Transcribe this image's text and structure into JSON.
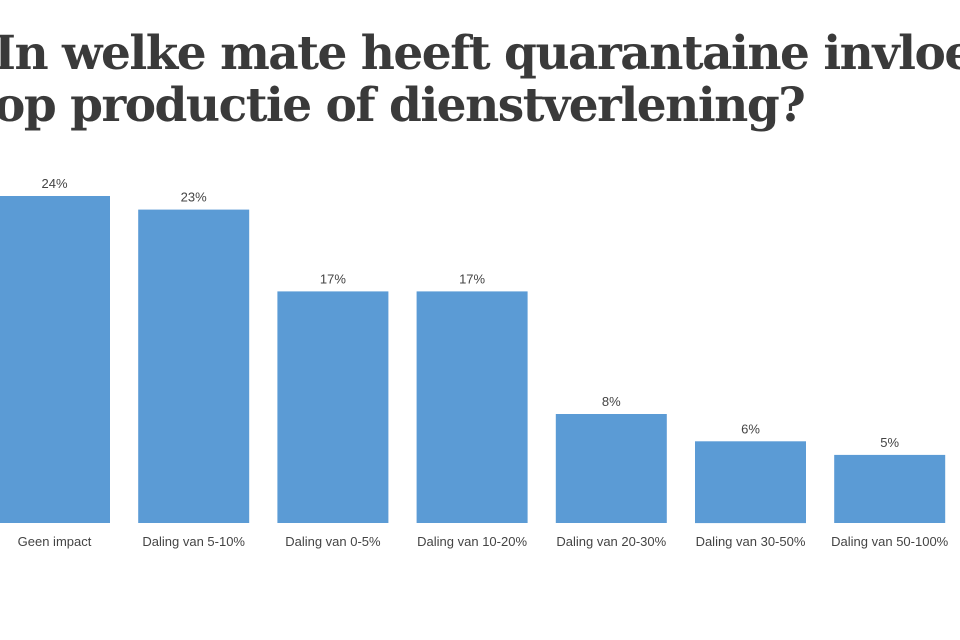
{
  "chart_data": {
    "type": "bar",
    "title_lines": [
      "In welke mate heeft quarantaine invloed",
      "op productie of dienstverlening?"
    ],
    "categories": [
      "Geen impact",
      "Daling van 5-10%",
      "Daling van 0-5%",
      "Daling van 10-20%",
      "Daling van 20-30%",
      "Daling van 30-50%",
      "Daling van 50-100%"
    ],
    "values": [
      24,
      23,
      17,
      17,
      8,
      6,
      5
    ],
    "value_labels": [
      "24%",
      "23%",
      "17%",
      "17%",
      "8%",
      "6%",
      "5%"
    ],
    "unit": "%",
    "ylim": [
      0,
      24
    ],
    "grid": false,
    "legend": "none",
    "bar_color": "#5b9bd5"
  }
}
